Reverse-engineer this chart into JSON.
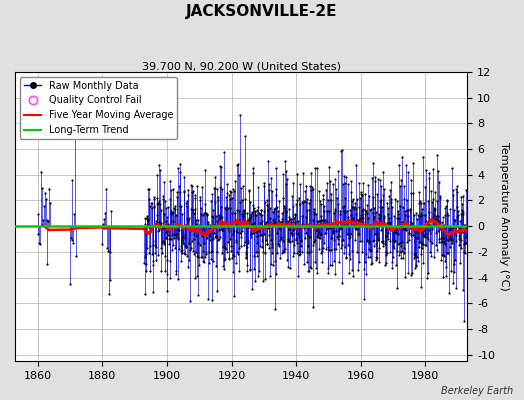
{
  "title": "JACKSONVILLE-2E",
  "subtitle": "39.700 N, 90.200 W (United States)",
  "ylabel": "Temperature Anomaly (°C)",
  "credit": "Berkeley Earth",
  "xlim": [
    1853,
    1993
  ],
  "ylim": [
    -10.5,
    12
  ],
  "yticks": [
    -10,
    -8,
    -6,
    -4,
    -2,
    0,
    2,
    4,
    6,
    8,
    10,
    12
  ],
  "xticks": [
    1860,
    1880,
    1900,
    1920,
    1940,
    1960,
    1980
  ],
  "start_year": 1856,
  "end_year": 1993,
  "background_color": "#e0e0e0",
  "plot_bg_color": "#ffffff",
  "grid_color": "#b0b0b0",
  "raw_line_color": "#0000dd",
  "raw_dot_color": "#000000",
  "moving_avg_color": "#ff0000",
  "trend_color": "#00cc00",
  "qc_fail_color": "#ff44ff",
  "title_fontsize": 11,
  "subtitle_fontsize": 8,
  "tick_fontsize": 8,
  "ylabel_fontsize": 8
}
